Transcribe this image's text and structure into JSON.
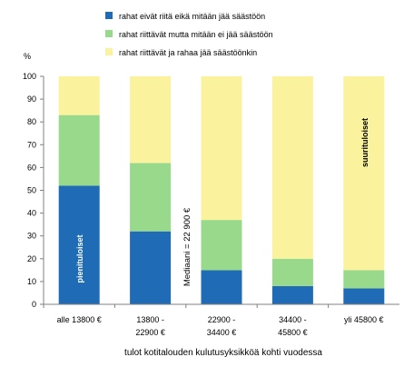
{
  "chart_data": {
    "type": "bar",
    "stacked": true,
    "categories": [
      [
        "alle 13800 €"
      ],
      [
        "13800 -",
        "22900 €"
      ],
      [
        "22900 -",
        "34400 €"
      ],
      [
        "34400 -",
        "45800 €"
      ],
      [
        "yli 45800 €"
      ]
    ],
    "series": [
      {
        "name": "rahat eivät riitä eikä mitään jää säästöön",
        "color": "#1f6bb5",
        "values": [
          52,
          32,
          15,
          8,
          7
        ]
      },
      {
        "name": "rahat riittävät mutta mitään ei jää säästöön",
        "color": "#99d98c",
        "values": [
          31,
          30,
          22,
          12,
          8
        ]
      },
      {
        "name": "rahat riittävät ja rahaa jää säästöönkin",
        "color": "#fbf29e",
        "values": [
          17,
          38,
          63,
          80,
          85
        ]
      }
    ],
    "ylabel": "%",
    "xlabel": "tulot kotitalouden  kulutusyksikköä  kohti vuodessa",
    "ylim": [
      0,
      100
    ],
    "yticks": [
      0,
      10,
      20,
      30,
      40,
      50,
      60,
      70,
      80,
      90,
      100
    ],
    "grid": false,
    "legend_position": "top",
    "annotations": [
      {
        "text": "pienituloiset",
        "category_index": 0
      },
      {
        "text": "suurituloiset",
        "category_index": 4
      }
    ],
    "median_label": "Mediaani = 22 900 €"
  }
}
